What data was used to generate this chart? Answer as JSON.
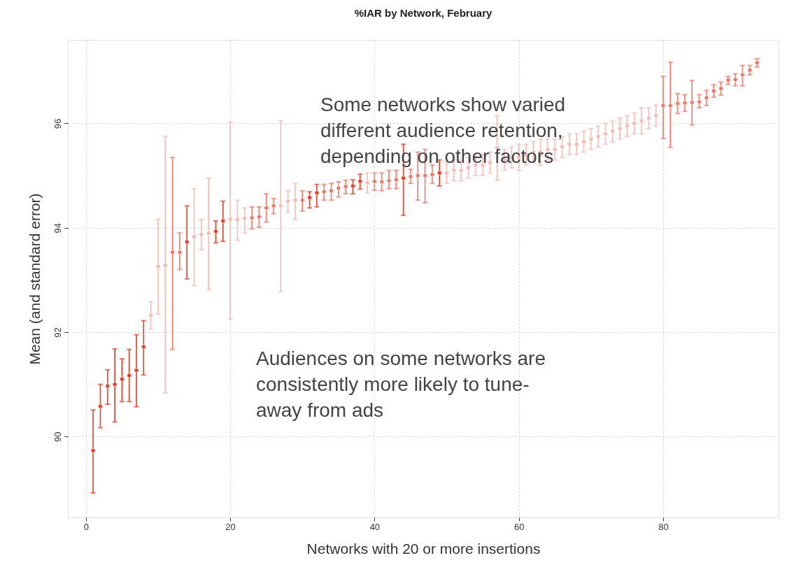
{
  "chart_data": {
    "type": "scatter",
    "title": "%IAR by Network, February",
    "xlabel": "Networks with 20 or more insertions",
    "ylabel": "Mean (and standard error)",
    "x": [
      1,
      2,
      3,
      4,
      5,
      6,
      7,
      8,
      9,
      10,
      11,
      12,
      13,
      14,
      15,
      16,
      17,
      18,
      19,
      20,
      21,
      22,
      23,
      24,
      25,
      26,
      27,
      28,
      29,
      30,
      31,
      32,
      33,
      34,
      35,
      36,
      37,
      38,
      39,
      40,
      41,
      42,
      43,
      44,
      45,
      46,
      47,
      48,
      49,
      50,
      51,
      52,
      53,
      54,
      55,
      56,
      57,
      58,
      59,
      60,
      61,
      62,
      63,
      64,
      65,
      66,
      67,
      68,
      69,
      70,
      71,
      72,
      73,
      74,
      75,
      76,
      77,
      78,
      79,
      80,
      81,
      82,
      83,
      84,
      85,
      86,
      87,
      88,
      89,
      90,
      91,
      92,
      93
    ],
    "values": [
      89.73,
      90.58,
      90.97,
      91.0,
      91.1,
      91.17,
      91.27,
      91.72,
      92.32,
      93.26,
      93.28,
      93.53,
      93.53,
      93.73,
      93.83,
      93.87,
      93.9,
      93.93,
      94.13,
      94.16,
      94.16,
      94.18,
      94.19,
      94.21,
      94.38,
      94.42,
      94.42,
      94.51,
      94.53,
      94.53,
      94.58,
      94.67,
      94.69,
      94.71,
      94.76,
      94.79,
      94.8,
      94.89,
      94.86,
      94.89,
      94.88,
      94.9,
      94.92,
      94.95,
      94.98,
      95.0,
      95.0,
      95.02,
      95.05,
      95.05,
      95.1,
      95.1,
      95.15,
      95.2,
      95.2,
      95.25,
      95.53,
      95.3,
      95.35,
      95.35,
      95.4,
      95.45,
      95.45,
      95.5,
      95.5,
      95.55,
      95.6,
      95.6,
      95.65,
      95.7,
      95.75,
      95.8,
      95.85,
      95.9,
      95.95,
      96.0,
      96.05,
      96.1,
      96.15,
      96.34,
      96.34,
      96.38,
      96.39,
      96.4,
      96.41,
      96.49,
      96.62,
      96.67,
      96.83,
      96.84,
      96.93,
      97.02,
      97.16
    ],
    "errors": [
      [
        88.92,
        90.51
      ],
      [
        90.17,
        91.0
      ],
      [
        90.62,
        91.28
      ],
      [
        90.28,
        91.68
      ],
      [
        90.67,
        91.49
      ],
      [
        90.67,
        91.67
      ],
      [
        90.57,
        91.95
      ],
      [
        91.18,
        92.22
      ],
      [
        92.06,
        92.58
      ],
      [
        92.35,
        94.16
      ],
      [
        90.84,
        95.75
      ],
      [
        91.67,
        95.35
      ],
      [
        93.2,
        93.9
      ],
      [
        93.02,
        94.42
      ],
      [
        92.89,
        94.75
      ],
      [
        93.58,
        94.16
      ],
      [
        92.81,
        94.95
      ],
      [
        93.71,
        94.13
      ],
      [
        93.74,
        94.51
      ],
      [
        92.25,
        96.02
      ],
      [
        93.76,
        94.53
      ],
      [
        93.9,
        94.38
      ],
      [
        93.98,
        94.4
      ],
      [
        94.01,
        94.4
      ],
      [
        94.11,
        94.65
      ],
      [
        94.27,
        94.56
      ],
      [
        92.78,
        96.05
      ],
      [
        94.29,
        94.71
      ],
      [
        94.16,
        94.85
      ],
      [
        94.32,
        94.71
      ],
      [
        94.38,
        94.69
      ],
      [
        94.4,
        94.83
      ],
      [
        94.53,
        94.83
      ],
      [
        94.53,
        94.85
      ],
      [
        94.59,
        94.88
      ],
      [
        94.65,
        94.91
      ],
      [
        94.65,
        94.92
      ],
      [
        94.74,
        95.03
      ],
      [
        94.67,
        95.05
      ],
      [
        94.72,
        95.05
      ],
      [
        94.71,
        95.05
      ],
      [
        94.75,
        95.1
      ],
      [
        94.75,
        95.1
      ],
      [
        94.24,
        95.6
      ],
      [
        94.85,
        95.12
      ],
      [
        94.53,
        95.45
      ],
      [
        94.48,
        95.5
      ],
      [
        94.85,
        95.2
      ],
      [
        94.8,
        95.3
      ],
      [
        94.85,
        95.25
      ],
      [
        94.9,
        95.3
      ],
      [
        94.9,
        95.3
      ],
      [
        94.95,
        95.35
      ],
      [
        95.0,
        95.4
      ],
      [
        95.0,
        95.4
      ],
      [
        95.05,
        95.45
      ],
      [
        94.91,
        96.15
      ],
      [
        95.1,
        95.5
      ],
      [
        95.15,
        95.55
      ],
      [
        95.1,
        95.6
      ],
      [
        95.2,
        95.6
      ],
      [
        95.25,
        95.65
      ],
      [
        95.2,
        95.7
      ],
      [
        95.3,
        95.7
      ],
      [
        95.3,
        95.7
      ],
      [
        95.35,
        95.75
      ],
      [
        95.4,
        95.8
      ],
      [
        95.4,
        95.8
      ],
      [
        95.45,
        95.85
      ],
      [
        95.5,
        95.9
      ],
      [
        95.55,
        95.95
      ],
      [
        95.6,
        96.0
      ],
      [
        95.65,
        96.05
      ],
      [
        95.7,
        96.1
      ],
      [
        95.75,
        96.15
      ],
      [
        95.8,
        96.2
      ],
      [
        95.8,
        96.3
      ],
      [
        95.9,
        96.3
      ],
      [
        95.95,
        96.35
      ],
      [
        95.71,
        96.9
      ],
      [
        95.54,
        97.17
      ],
      [
        96.19,
        96.57
      ],
      [
        96.23,
        96.55
      ],
      [
        95.97,
        96.82
      ],
      [
        96.3,
        96.55
      ],
      [
        96.34,
        96.63
      ],
      [
        96.5,
        96.74
      ],
      [
        96.54,
        96.79
      ],
      [
        96.75,
        96.9
      ],
      [
        96.72,
        96.95
      ],
      [
        96.72,
        97.11
      ],
      [
        96.93,
        97.11
      ],
      [
        97.08,
        97.24
      ]
    ],
    "colors": [
      "#ea3a22",
      "#ea3a22",
      "#ea3a22",
      "#ea3a22",
      "#ea3a22",
      "#ea3a22",
      "#ea3a22",
      "#ea3a22",
      "#f9b9b1",
      "#f9b9b1",
      "#f9b9b1",
      "#f37565",
      "#f37565",
      "#ea3a22",
      "#f9b9b1",
      "#f9b9b1",
      "#f9b9b1",
      "#ea3a22",
      "#ea3a22",
      "#f9b9b1",
      "#f9b9b1",
      "#f9b9b1",
      "#f37565",
      "#f37565",
      "#f37565",
      "#f37565",
      "#f9b9b1",
      "#f9b9b1",
      "#f9b9b1",
      "#f37565",
      "#ea3a22",
      "#ea3a22",
      "#f37565",
      "#f37565",
      "#f37565",
      "#f37565",
      "#ea3a22",
      "#ea3a22",
      "#f9b9b1",
      "#f37565",
      "#f37565",
      "#f37565",
      "#f37565",
      "#ea3a22",
      "#f37565",
      "#f37565",
      "#f37565",
      "#f37565",
      "#ea3a22",
      "#f9b9b1",
      "#f9b9b1",
      "#f9b9b1",
      "#f9b9b1",
      "#f9b9b1",
      "#f9b9b1",
      "#f9b9b1",
      "#f9b9b1",
      "#f9b9b1",
      "#f9b9b1",
      "#f9b9b1",
      "#f9b9b1",
      "#f9b9b1",
      "#f9b9b1",
      "#f9b9b1",
      "#f9b9b1",
      "#f9b9b1",
      "#f9b9b1",
      "#f9b9b1",
      "#f9b9b1",
      "#f9b9b1",
      "#f9b9b1",
      "#f9b9b1",
      "#f9b9b1",
      "#f9b9b1",
      "#f9b9b1",
      "#f9b9b1",
      "#f9b9b1",
      "#f9b9b1",
      "#f9b9b1",
      "#f37565",
      "#f37565",
      "#f37565",
      "#f37565",
      "#f37565",
      "#f37565",
      "#f37565",
      "#f37565",
      "#f37565",
      "#f37565",
      "#f37565",
      "#f37565",
      "#f37565",
      "#f37565"
    ],
    "xlim": [
      -2.5,
      96
    ],
    "xticks": [
      0,
      20,
      40,
      60,
      80
    ],
    "ylim": [
      88.45,
      97.6
    ],
    "yticks": [
      90,
      92,
      94,
      96
    ],
    "grid": true,
    "marker": "circle",
    "annotations": [
      "Some networks show varied\ndifferent audience retention,\ndepending on other factors",
      "Audiences on some networks are\nconsistently more likely to tune-\naway from ads"
    ]
  }
}
